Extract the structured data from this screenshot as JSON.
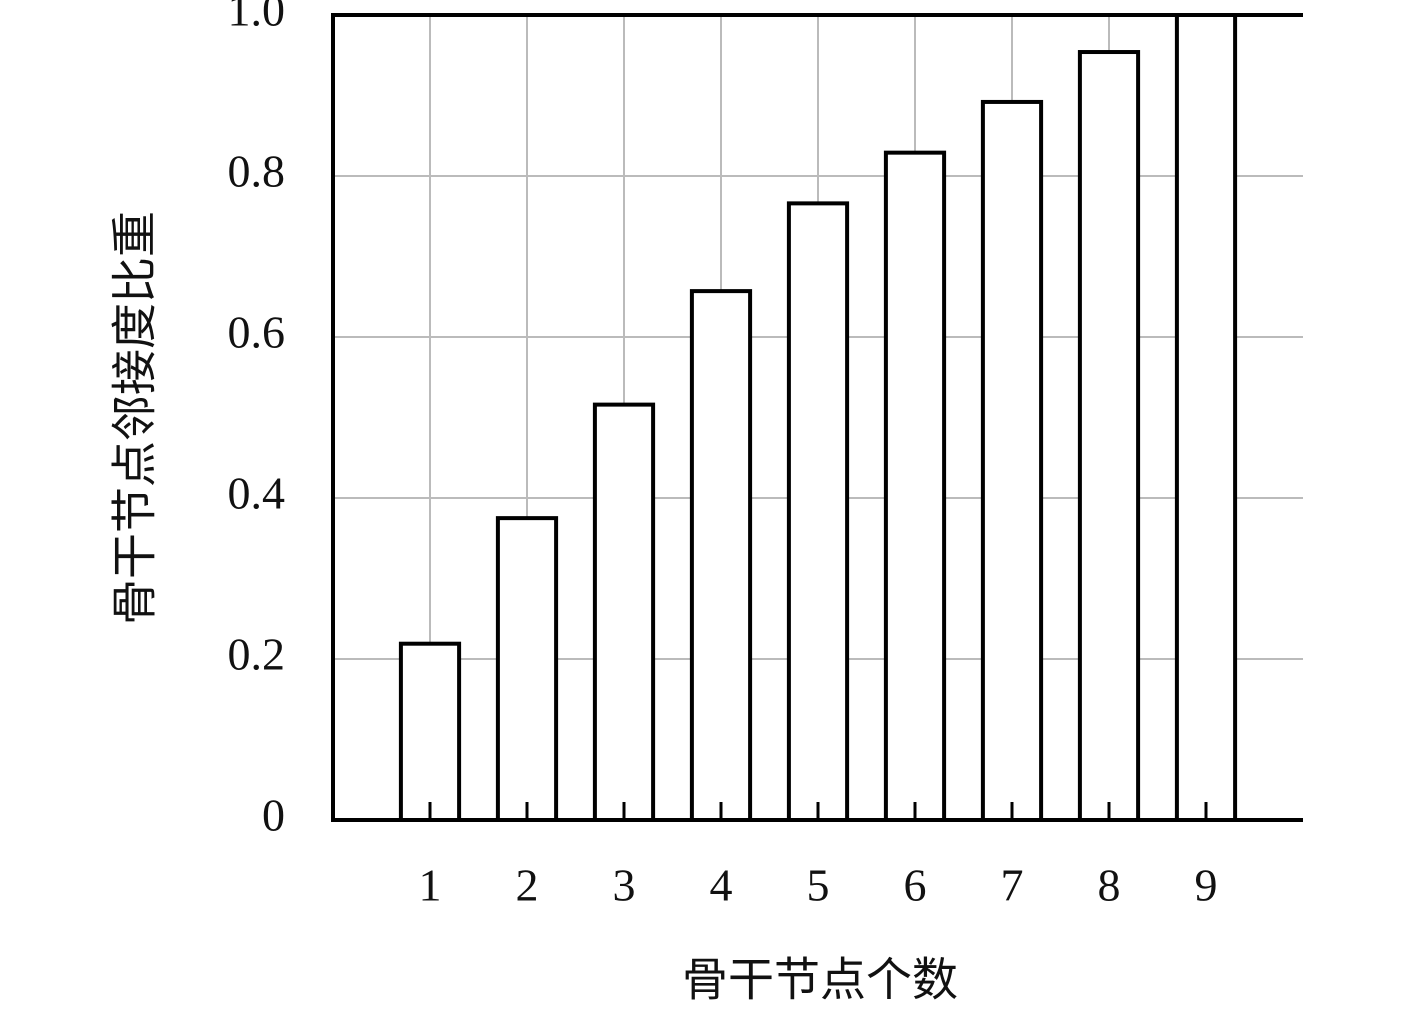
{
  "chart_data": {
    "type": "bar",
    "x_label": "骨干节点个数",
    "y_label": "骨干节点邻接度比重",
    "x": [
      1,
      2,
      3,
      4,
      5,
      6,
      7,
      8,
      9
    ],
    "values": [
      0.219,
      0.375,
      0.516,
      0.657,
      0.766,
      0.829,
      0.892,
      0.954,
      1.0
    ],
    "color": "#ffffff",
    "edge_color": "#000000",
    "xlim": [
      0,
      10
    ],
    "xticks": [
      1,
      2,
      3,
      4,
      5,
      6,
      7,
      8,
      9
    ],
    "ylim": [
      0,
      1
    ],
    "yticks": [
      0,
      0.2,
      0.4,
      0.6,
      0.8,
      {
        "value": 1,
        "label": "1.0"
      }
    ],
    "grid": true
  }
}
